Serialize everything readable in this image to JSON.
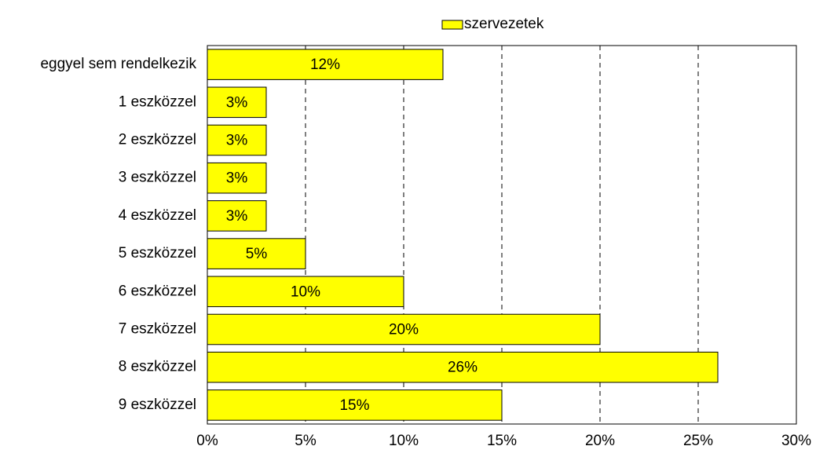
{
  "chart_data": {
    "type": "bar",
    "orientation": "horizontal",
    "categories": [
      "eggyel sem rendelkezik",
      "1 eszközzel",
      "2 eszközzel",
      "3 eszközzel",
      "4 eszközzel",
      "5 eszközzel",
      "6 eszközzel",
      "7 eszközzel",
      "8 eszközzel",
      "9 eszközzel"
    ],
    "series": [
      {
        "name": "szervezetek",
        "color": "#ffff00",
        "values": [
          12,
          3,
          3,
          3,
          3,
          5,
          10,
          20,
          26,
          15
        ],
        "value_labels": [
          "12%",
          "3%",
          "3%",
          "3%",
          "3%",
          "5%",
          "10%",
          "20%",
          "26%",
          "15%"
        ]
      }
    ],
    "xlim": [
      0,
      30
    ],
    "xticks": [
      {
        "value": 0,
        "label": "0%"
      },
      {
        "value": 5,
        "label": "5%"
      },
      {
        "value": 10,
        "label": "10%"
      },
      {
        "value": 15,
        "label": "15%"
      },
      {
        "value": 20,
        "label": "20%"
      },
      {
        "value": 25,
        "label": "25%"
      },
      {
        "value": 30,
        "label": "30%"
      }
    ],
    "grid": true,
    "legend": "top"
  }
}
